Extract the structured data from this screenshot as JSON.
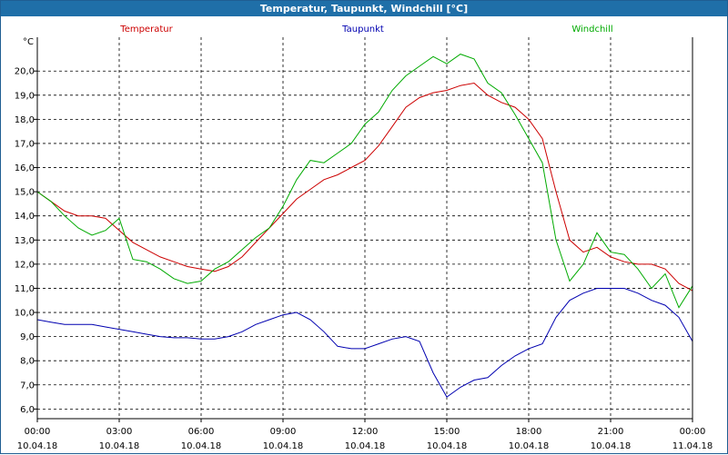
{
  "window": {
    "title": "Temperatur, Taupunkt, Windchill [°C]"
  },
  "chart_data": {
    "type": "line",
    "title": "Temperatur, Taupunkt, Windchill [°C]",
    "ylabel": "°C",
    "xlabel": "",
    "ylim": [
      5.6,
      21.4
    ],
    "xlim": [
      0,
      24
    ],
    "grid": true,
    "legend_position": "top",
    "yticks": [
      6.0,
      7.0,
      8.0,
      9.0,
      10.0,
      11.0,
      12.0,
      13.0,
      14.0,
      15.0,
      16.0,
      17.0,
      18.0,
      19.0,
      20.0
    ],
    "ytick_labels": [
      "6,0",
      "7,0",
      "8,0",
      "9,0",
      "10,0",
      "11,0",
      "12,0",
      "13,0",
      "14,0",
      "15,0",
      "16,0",
      "17,0",
      "18,0",
      "19,0",
      "20,0"
    ],
    "xticks": [
      {
        "x": 0,
        "time": "00:00",
        "date": "10.04.18"
      },
      {
        "x": 3,
        "time": "03:00",
        "date": "10.04.18"
      },
      {
        "x": 6,
        "time": "06:00",
        "date": "10.04.18"
      },
      {
        "x": 9,
        "time": "09:00",
        "date": "10.04.18"
      },
      {
        "x": 12,
        "time": "12:00",
        "date": "10.04.18"
      },
      {
        "x": 15,
        "time": "15:00",
        "date": "10.04.18"
      },
      {
        "x": 18,
        "time": "18:00",
        "date": "10.04.18"
      },
      {
        "x": 21,
        "time": "21:00",
        "date": "10.04.18"
      },
      {
        "x": 24,
        "time": "00:00",
        "date": "11.04.18"
      }
    ],
    "series": [
      {
        "name": "Temperatur",
        "color": "#cc0000",
        "x": [
          0,
          0.5,
          1,
          1.5,
          2,
          2.5,
          3,
          3.5,
          4,
          4.5,
          5,
          5.5,
          6,
          6.5,
          7,
          7.5,
          8,
          8.5,
          9,
          9.5,
          10,
          10.5,
          11,
          11.5,
          12,
          12.5,
          13,
          13.5,
          14,
          14.5,
          15,
          15.5,
          16,
          16.5,
          17,
          17.5,
          18,
          18.5,
          19,
          19.5,
          20,
          20.5,
          21,
          21.5,
          22,
          22.5,
          23,
          23.5,
          24
        ],
        "y": [
          15.0,
          14.6,
          14.2,
          14.0,
          14.0,
          13.9,
          13.4,
          12.9,
          12.6,
          12.3,
          12.1,
          11.9,
          11.8,
          11.7,
          11.9,
          12.3,
          12.9,
          13.5,
          14.1,
          14.7,
          15.1,
          15.5,
          15.7,
          16.0,
          16.3,
          16.9,
          17.7,
          18.5,
          18.9,
          19.1,
          19.2,
          19.4,
          19.5,
          19.0,
          18.7,
          18.5,
          18.0,
          17.2,
          15.0,
          13.0,
          12.5,
          12.7,
          12.3,
          12.1,
          12.0,
          12.0,
          11.8,
          11.2,
          10.9
        ]
      },
      {
        "name": "Taupunkt",
        "color": "#0000b0",
        "x": [
          0,
          0.5,
          1,
          1.5,
          2,
          2.5,
          3,
          3.5,
          4,
          4.5,
          5,
          5.5,
          6,
          6.5,
          7,
          7.5,
          8,
          8.5,
          9,
          9.5,
          10,
          10.5,
          11,
          11.5,
          12,
          12.5,
          13,
          13.5,
          14,
          14.5,
          15,
          15.5,
          16,
          16.5,
          17,
          17.5,
          18,
          18.5,
          19,
          19.5,
          20,
          20.5,
          21,
          21.5,
          22,
          22.5,
          23,
          23.5,
          24
        ],
        "y": [
          9.7,
          9.6,
          9.5,
          9.5,
          9.5,
          9.4,
          9.3,
          9.2,
          9.1,
          9.0,
          8.95,
          8.95,
          8.9,
          8.9,
          9.0,
          9.2,
          9.5,
          9.7,
          9.9,
          10.0,
          9.7,
          9.2,
          8.6,
          8.5,
          8.5,
          8.7,
          8.9,
          9.0,
          8.8,
          7.5,
          6.5,
          6.9,
          7.2,
          7.3,
          7.8,
          8.2,
          8.5,
          8.7,
          9.8,
          10.5,
          10.8,
          11.0,
          11.0,
          11.0,
          10.8,
          10.5,
          10.3,
          9.8,
          8.8
        ]
      },
      {
        "name": "Windchill",
        "color": "#00aa00",
        "x": [
          0,
          0.5,
          1,
          1.5,
          2,
          2.5,
          3,
          3.5,
          4,
          4.5,
          5,
          5.5,
          6,
          6.5,
          7,
          7.5,
          8,
          8.5,
          9,
          9.5,
          10,
          10.5,
          11,
          11.5,
          12,
          12.5,
          13,
          13.5,
          14,
          14.5,
          15,
          15.5,
          16,
          16.5,
          17,
          17.5,
          18,
          18.5,
          19,
          19.5,
          20,
          20.5,
          21,
          21.5,
          22,
          22.5,
          23,
          23.5,
          24
        ],
        "y": [
          15.0,
          14.6,
          14.0,
          13.5,
          13.2,
          13.4,
          13.9,
          12.2,
          12.1,
          11.8,
          11.4,
          11.2,
          11.3,
          11.8,
          12.1,
          12.6,
          13.1,
          13.5,
          14.4,
          15.5,
          16.3,
          16.2,
          16.6,
          17.0,
          17.8,
          18.3,
          19.2,
          19.8,
          20.2,
          20.6,
          20.3,
          20.7,
          20.5,
          19.5,
          19.1,
          18.2,
          17.2,
          16.2,
          13.0,
          11.3,
          12.0,
          13.3,
          12.5,
          12.4,
          11.8,
          11.0,
          11.6,
          10.2,
          11.1
        ]
      }
    ]
  }
}
